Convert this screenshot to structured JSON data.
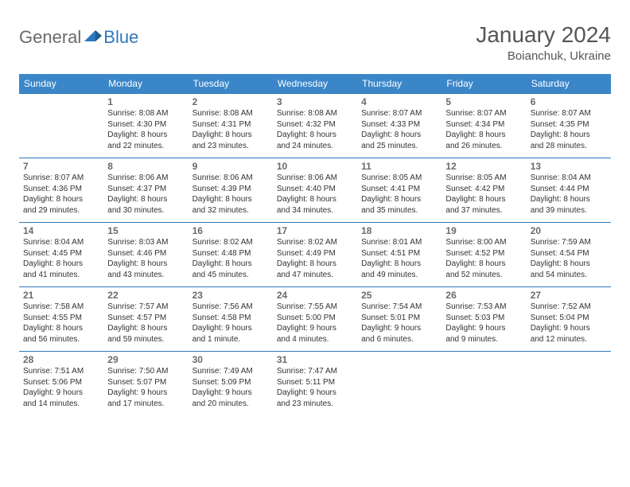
{
  "brand": {
    "part1": "General",
    "part2": "Blue",
    "color1": "#6a6a6a",
    "color2": "#2f77bb"
  },
  "title": "January 2024",
  "location": "Boianchuk, Ukraine",
  "colors": {
    "header_bg": "#3a86c8",
    "row_border": "#2f77bb",
    "text": "#333333",
    "muted": "#6a6a6a"
  },
  "day_headers": [
    "Sunday",
    "Monday",
    "Tuesday",
    "Wednesday",
    "Thursday",
    "Friday",
    "Saturday"
  ],
  "weeks": [
    [
      {
        "n": "",
        "lines": []
      },
      {
        "n": "1",
        "lines": [
          "Sunrise: 8:08 AM",
          "Sunset: 4:30 PM",
          "Daylight: 8 hours",
          "and 22 minutes."
        ]
      },
      {
        "n": "2",
        "lines": [
          "Sunrise: 8:08 AM",
          "Sunset: 4:31 PM",
          "Daylight: 8 hours",
          "and 23 minutes."
        ]
      },
      {
        "n": "3",
        "lines": [
          "Sunrise: 8:08 AM",
          "Sunset: 4:32 PM",
          "Daylight: 8 hours",
          "and 24 minutes."
        ]
      },
      {
        "n": "4",
        "lines": [
          "Sunrise: 8:07 AM",
          "Sunset: 4:33 PM",
          "Daylight: 8 hours",
          "and 25 minutes."
        ]
      },
      {
        "n": "5",
        "lines": [
          "Sunrise: 8:07 AM",
          "Sunset: 4:34 PM",
          "Daylight: 8 hours",
          "and 26 minutes."
        ]
      },
      {
        "n": "6",
        "lines": [
          "Sunrise: 8:07 AM",
          "Sunset: 4:35 PM",
          "Daylight: 8 hours",
          "and 28 minutes."
        ]
      }
    ],
    [
      {
        "n": "7",
        "lines": [
          "Sunrise: 8:07 AM",
          "Sunset: 4:36 PM",
          "Daylight: 8 hours",
          "and 29 minutes."
        ]
      },
      {
        "n": "8",
        "lines": [
          "Sunrise: 8:06 AM",
          "Sunset: 4:37 PM",
          "Daylight: 8 hours",
          "and 30 minutes."
        ]
      },
      {
        "n": "9",
        "lines": [
          "Sunrise: 8:06 AM",
          "Sunset: 4:39 PM",
          "Daylight: 8 hours",
          "and 32 minutes."
        ]
      },
      {
        "n": "10",
        "lines": [
          "Sunrise: 8:06 AM",
          "Sunset: 4:40 PM",
          "Daylight: 8 hours",
          "and 34 minutes."
        ]
      },
      {
        "n": "11",
        "lines": [
          "Sunrise: 8:05 AM",
          "Sunset: 4:41 PM",
          "Daylight: 8 hours",
          "and 35 minutes."
        ]
      },
      {
        "n": "12",
        "lines": [
          "Sunrise: 8:05 AM",
          "Sunset: 4:42 PM",
          "Daylight: 8 hours",
          "and 37 minutes."
        ]
      },
      {
        "n": "13",
        "lines": [
          "Sunrise: 8:04 AM",
          "Sunset: 4:44 PM",
          "Daylight: 8 hours",
          "and 39 minutes."
        ]
      }
    ],
    [
      {
        "n": "14",
        "lines": [
          "Sunrise: 8:04 AM",
          "Sunset: 4:45 PM",
          "Daylight: 8 hours",
          "and 41 minutes."
        ]
      },
      {
        "n": "15",
        "lines": [
          "Sunrise: 8:03 AM",
          "Sunset: 4:46 PM",
          "Daylight: 8 hours",
          "and 43 minutes."
        ]
      },
      {
        "n": "16",
        "lines": [
          "Sunrise: 8:02 AM",
          "Sunset: 4:48 PM",
          "Daylight: 8 hours",
          "and 45 minutes."
        ]
      },
      {
        "n": "17",
        "lines": [
          "Sunrise: 8:02 AM",
          "Sunset: 4:49 PM",
          "Daylight: 8 hours",
          "and 47 minutes."
        ]
      },
      {
        "n": "18",
        "lines": [
          "Sunrise: 8:01 AM",
          "Sunset: 4:51 PM",
          "Daylight: 8 hours",
          "and 49 minutes."
        ]
      },
      {
        "n": "19",
        "lines": [
          "Sunrise: 8:00 AM",
          "Sunset: 4:52 PM",
          "Daylight: 8 hours",
          "and 52 minutes."
        ]
      },
      {
        "n": "20",
        "lines": [
          "Sunrise: 7:59 AM",
          "Sunset: 4:54 PM",
          "Daylight: 8 hours",
          "and 54 minutes."
        ]
      }
    ],
    [
      {
        "n": "21",
        "lines": [
          "Sunrise: 7:58 AM",
          "Sunset: 4:55 PM",
          "Daylight: 8 hours",
          "and 56 minutes."
        ]
      },
      {
        "n": "22",
        "lines": [
          "Sunrise: 7:57 AM",
          "Sunset: 4:57 PM",
          "Daylight: 8 hours",
          "and 59 minutes."
        ]
      },
      {
        "n": "23",
        "lines": [
          "Sunrise: 7:56 AM",
          "Sunset: 4:58 PM",
          "Daylight: 9 hours",
          "and 1 minute."
        ]
      },
      {
        "n": "24",
        "lines": [
          "Sunrise: 7:55 AM",
          "Sunset: 5:00 PM",
          "Daylight: 9 hours",
          "and 4 minutes."
        ]
      },
      {
        "n": "25",
        "lines": [
          "Sunrise: 7:54 AM",
          "Sunset: 5:01 PM",
          "Daylight: 9 hours",
          "and 6 minutes."
        ]
      },
      {
        "n": "26",
        "lines": [
          "Sunrise: 7:53 AM",
          "Sunset: 5:03 PM",
          "Daylight: 9 hours",
          "and 9 minutes."
        ]
      },
      {
        "n": "27",
        "lines": [
          "Sunrise: 7:52 AM",
          "Sunset: 5:04 PM",
          "Daylight: 9 hours",
          "and 12 minutes."
        ]
      }
    ],
    [
      {
        "n": "28",
        "lines": [
          "Sunrise: 7:51 AM",
          "Sunset: 5:06 PM",
          "Daylight: 9 hours",
          "and 14 minutes."
        ]
      },
      {
        "n": "29",
        "lines": [
          "Sunrise: 7:50 AM",
          "Sunset: 5:07 PM",
          "Daylight: 9 hours",
          "and 17 minutes."
        ]
      },
      {
        "n": "30",
        "lines": [
          "Sunrise: 7:49 AM",
          "Sunset: 5:09 PM",
          "Daylight: 9 hours",
          "and 20 minutes."
        ]
      },
      {
        "n": "31",
        "lines": [
          "Sunrise: 7:47 AM",
          "Sunset: 5:11 PM",
          "Daylight: 9 hours",
          "and 23 minutes."
        ]
      },
      {
        "n": "",
        "lines": []
      },
      {
        "n": "",
        "lines": []
      },
      {
        "n": "",
        "lines": []
      }
    ]
  ]
}
